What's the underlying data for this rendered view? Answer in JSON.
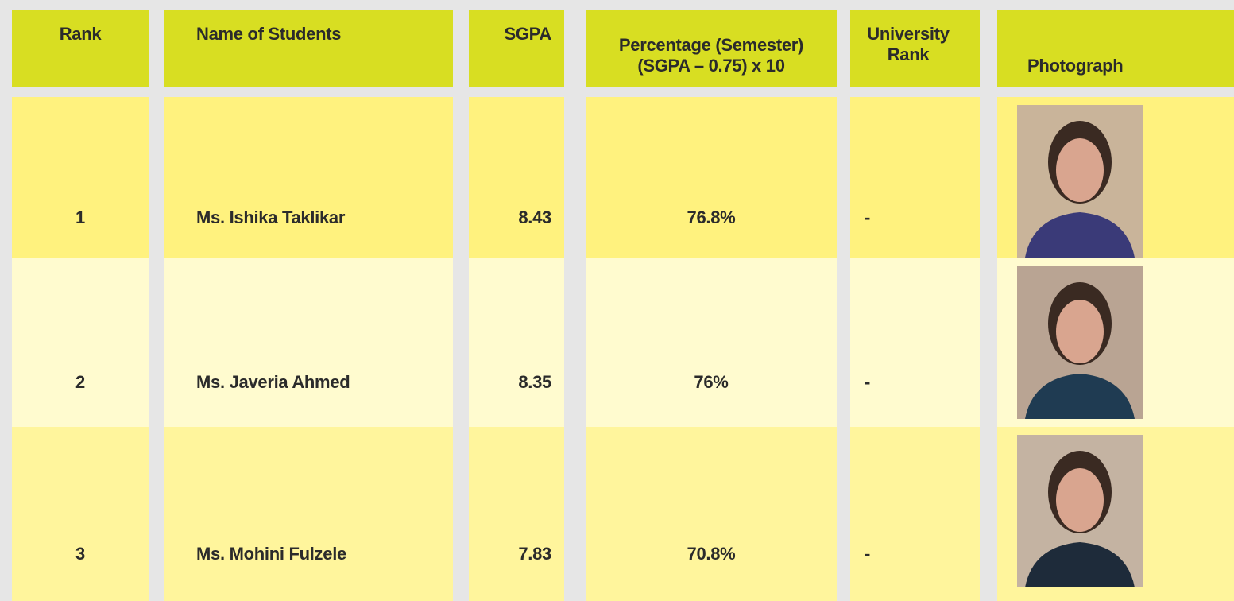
{
  "table": {
    "headers": [
      "Rank",
      "Name of Students",
      "SGPA",
      [
        "Percentage (Semester)",
        "(SGPA – 0.75) x 10"
      ],
      "University Rank",
      "Photograph"
    ],
    "rows": [
      [
        "1",
        "Ms. Ishika Taklikar",
        "8.43",
        "76.8%",
        "-"
      ],
      [
        "2",
        "Ms. Javeria Ahmed",
        "8.35",
        "76%",
        "-"
      ],
      [
        "3",
        "Ms. Mohini Fulzele",
        "7.83",
        "70.8%",
        "-"
      ]
    ]
  }
}
